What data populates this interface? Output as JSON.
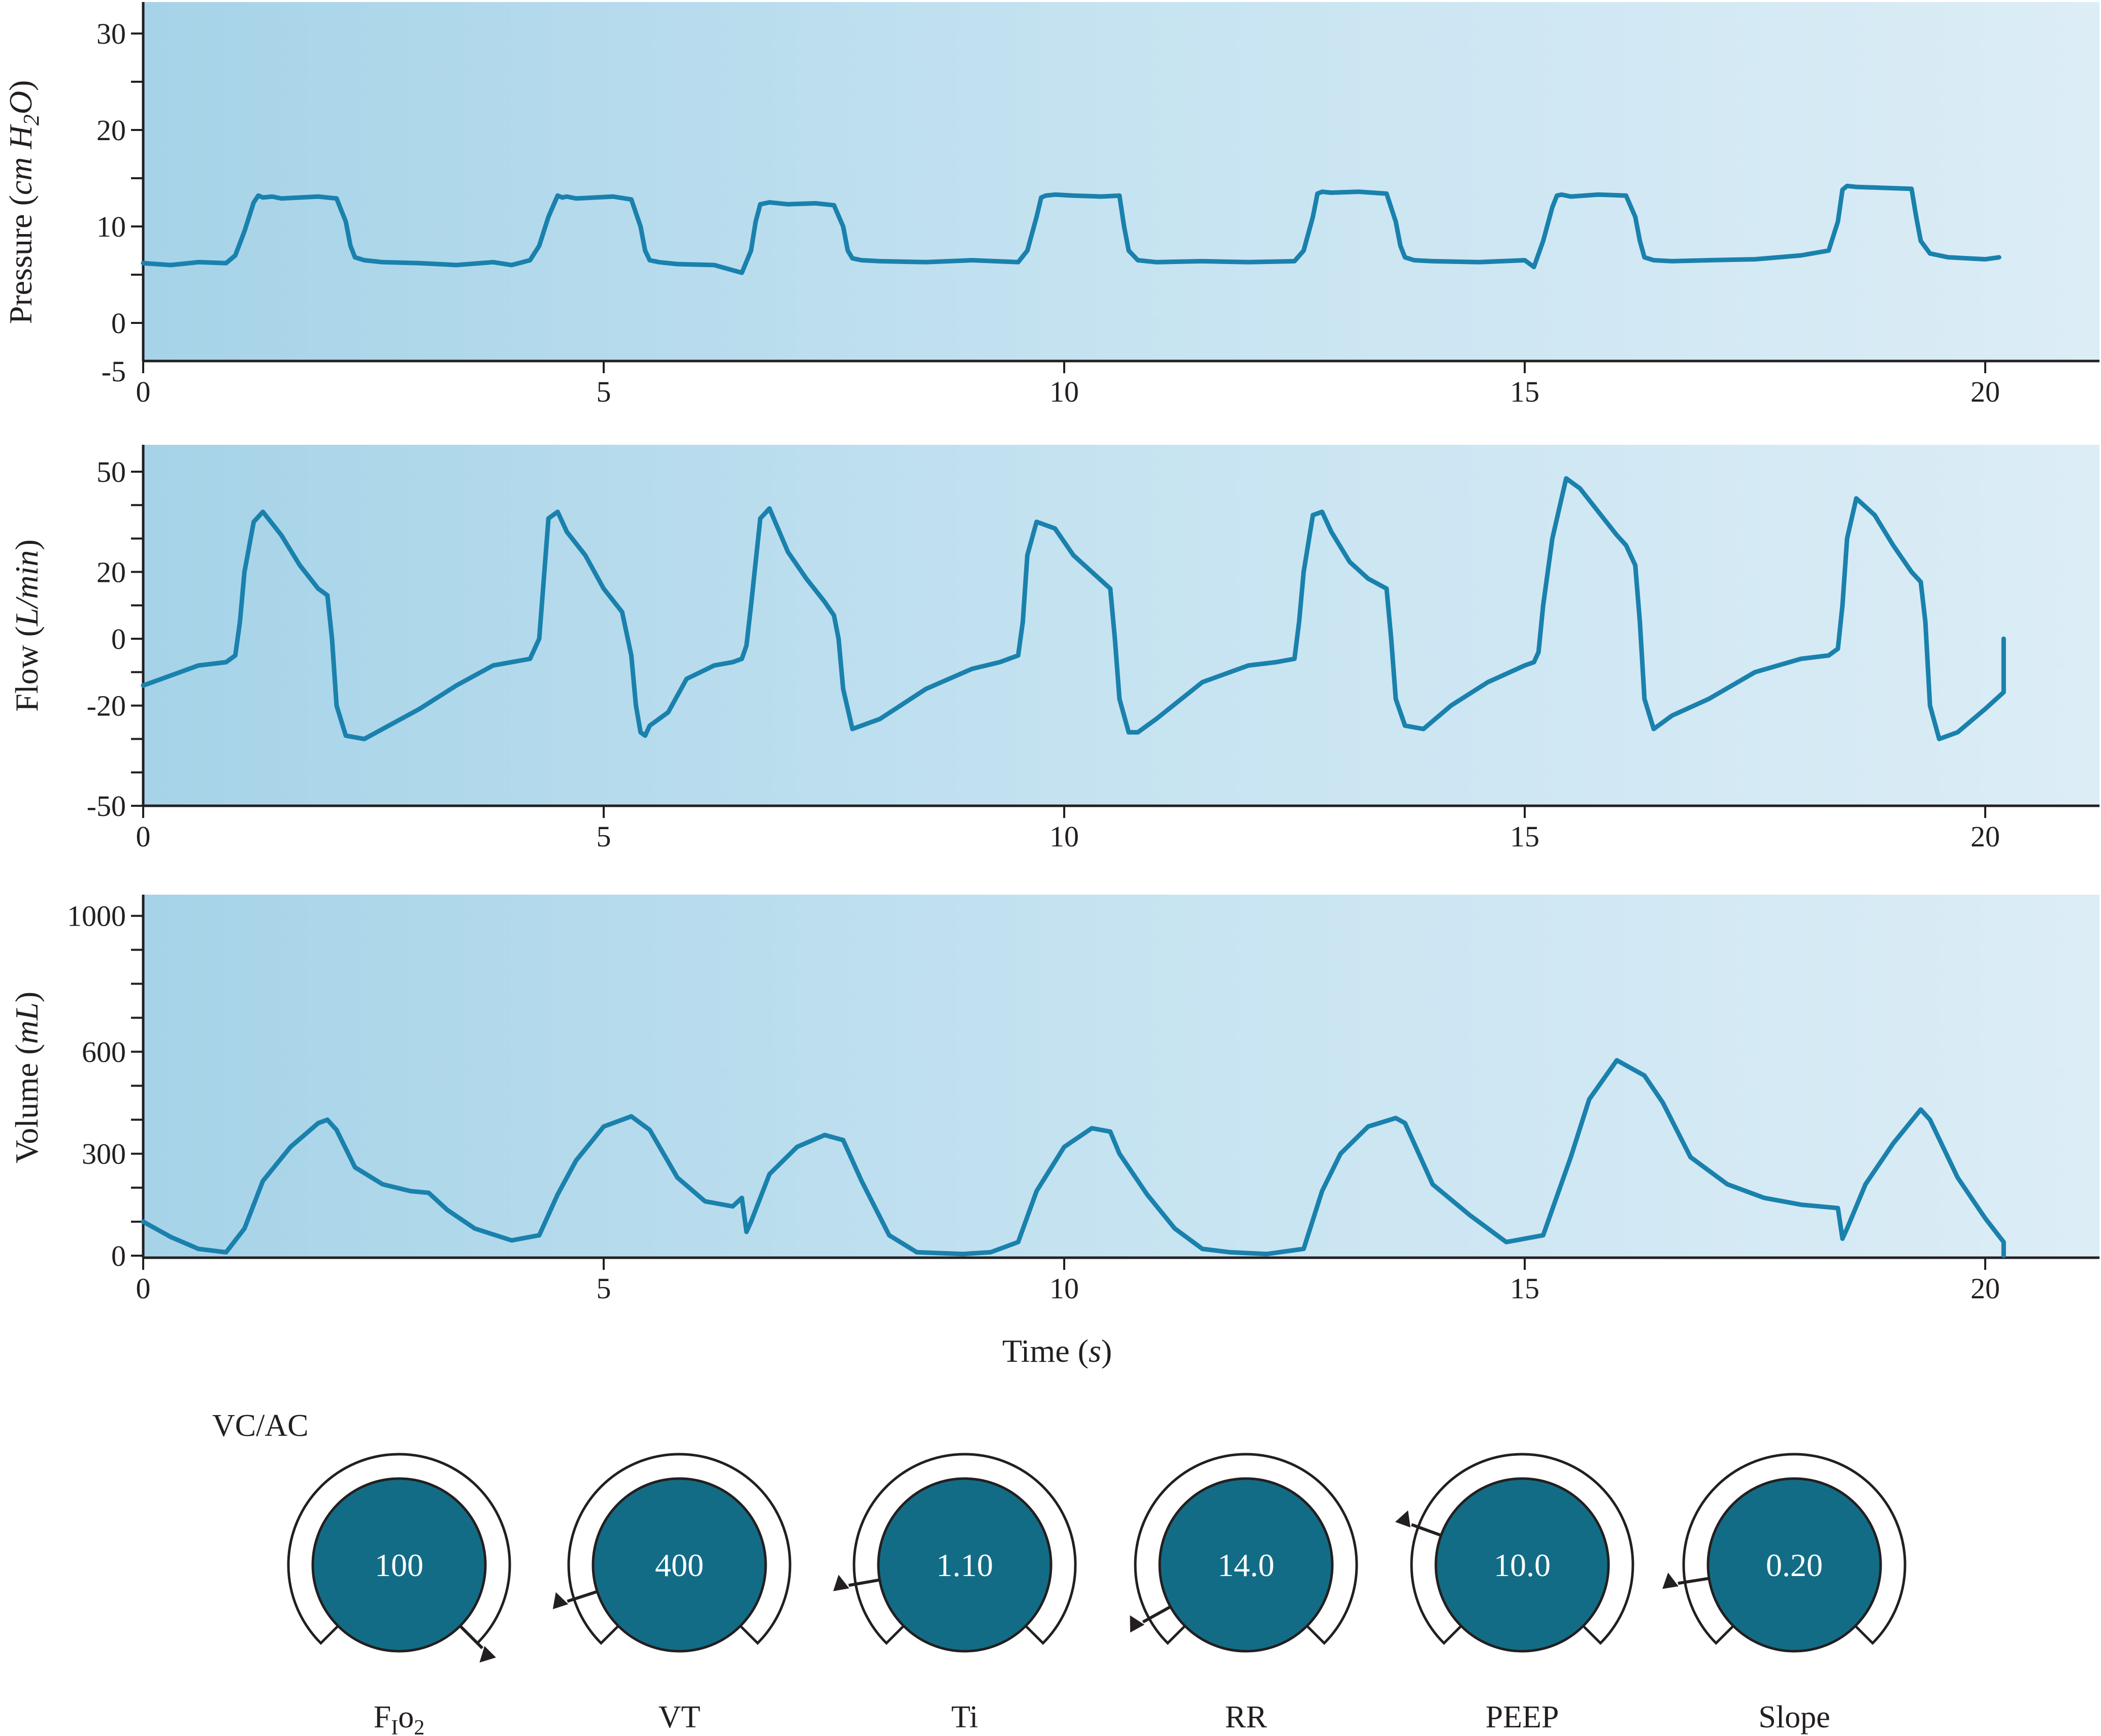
{
  "colors": {
    "trace": "#1a81ad",
    "panel_left": "#a6d3e8",
    "panel_mid": "#c6e3f1",
    "panel_right": "#dcedf6",
    "axis": "#231f20",
    "knob_fill": "#136c86",
    "knob_stroke": "#231f20",
    "knob_ring": "#ffffff"
  },
  "chart_data": [
    {
      "type": "line",
      "title": "",
      "xlabel": "",
      "ylabel_main": "Pressure (",
      "ylabel_italic": "cm H",
      "ylabel_sub": "2",
      "ylabel_italic2": "O",
      "ylabel_end": ")",
      "xlim": [
        0,
        21.3
      ],
      "ylim": [
        -5,
        33
      ],
      "xticks": [
        "0",
        "5",
        "10",
        "15",
        "20"
      ],
      "yticks": [
        "-5",
        "0",
        "10",
        "20",
        "30"
      ],
      "grid": false,
      "series": [
        {
          "x": [
            0,
            0.3,
            0.6,
            0.9,
            1.0,
            1.1,
            1.2,
            1.25,
            1.3,
            1.4,
            1.5,
            1.7,
            1.9,
            2.1,
            2.2,
            2.25,
            2.3,
            2.4,
            2.6,
            3.0,
            3.4,
            3.8,
            4.0,
            4.2,
            4.3,
            4.4,
            4.5,
            4.55,
            4.6,
            4.7,
            4.9,
            5.1,
            5.3,
            5.4,
            5.45,
            5.5,
            5.6,
            5.8,
            6.2,
            6.5,
            6.6,
            6.65,
            6.7,
            6.8,
            7.0,
            7.3,
            7.5,
            7.6,
            7.65,
            7.7,
            7.8,
            8.0,
            8.5,
            9.0,
            9.5,
            9.6,
            9.7,
            9.75,
            9.8,
            9.9,
            10.1,
            10.4,
            10.6,
            10.65,
            10.7,
            10.8,
            11.0,
            11.5,
            12.0,
            12.5,
            12.6,
            12.7,
            12.75,
            12.8,
            12.9,
            13.2,
            13.5,
            13.6,
            13.65,
            13.7,
            13.8,
            14.0,
            14.5,
            15.0,
            15.1,
            15.2,
            15.3,
            15.35,
            15.4,
            15.5,
            15.8,
            16.1,
            16.2,
            16.25,
            16.3,
            16.4,
            16.6,
            17.0,
            17.5,
            18.0,
            18.3,
            18.4,
            18.45,
            18.5,
            18.6,
            18.9,
            19.2,
            19.25,
            19.3,
            19.4,
            19.6,
            20.0,
            20.15
          ],
          "y": [
            6.2,
            6.0,
            6.3,
            6.2,
            7.0,
            9.5,
            12.5,
            13.2,
            13.0,
            13.1,
            12.9,
            13.0,
            13.1,
            12.9,
            10.5,
            8.0,
            6.8,
            6.5,
            6.3,
            6.2,
            6.0,
            6.3,
            6.0,
            6.5,
            8.0,
            11.0,
            13.2,
            13.0,
            13.1,
            12.9,
            13.0,
            13.1,
            12.8,
            10.0,
            7.5,
            6.5,
            6.3,
            6.1,
            6.0,
            5.2,
            7.5,
            10.5,
            12.3,
            12.5,
            12.3,
            12.4,
            12.2,
            10.0,
            7.5,
            6.7,
            6.5,
            6.4,
            6.3,
            6.5,
            6.3,
            7.5,
            11.0,
            13.0,
            13.2,
            13.3,
            13.2,
            13.1,
            13.2,
            10.0,
            7.5,
            6.5,
            6.3,
            6.4,
            6.3,
            6.4,
            7.5,
            11.0,
            13.4,
            13.6,
            13.5,
            13.6,
            13.4,
            10.5,
            8.0,
            6.8,
            6.5,
            6.4,
            6.3,
            6.5,
            5.8,
            8.5,
            12.0,
            13.2,
            13.3,
            13.1,
            13.3,
            13.2,
            11.0,
            8.5,
            6.8,
            6.5,
            6.4,
            6.5,
            6.6,
            7.0,
            7.5,
            10.5,
            13.8,
            14.2,
            14.1,
            14.0,
            13.9,
            11.0,
            8.5,
            7.2,
            6.8,
            6.6,
            6.8
          ]
        }
      ]
    },
    {
      "type": "line",
      "title": "",
      "xlabel": "",
      "ylabel_main": "Flow (",
      "ylabel_italic": "L/min",
      "ylabel_end": ")",
      "xlim": [
        0,
        21.3
      ],
      "ylim": [
        -50,
        53
      ],
      "xticks": [
        "0",
        "5",
        "10",
        "15",
        "20"
      ],
      "yticks": [
        "-50",
        "-20",
        "0",
        "20",
        "50"
      ],
      "grid": false,
      "series": [
        {
          "x": [
            0,
            0.3,
            0.6,
            0.9,
            1.0,
            1.05,
            1.1,
            1.2,
            1.3,
            1.5,
            1.7,
            1.9,
            2.0,
            2.05,
            2.1,
            2.2,
            2.4,
            2.6,
            3.0,
            3.4,
            3.8,
            4.0,
            4.2,
            4.3,
            4.35,
            4.4,
            4.5,
            4.6,
            4.8,
            5.0,
            5.2,
            5.3,
            5.35,
            5.4,
            5.45,
            5.5,
            5.7,
            5.9,
            6.2,
            6.4,
            6.5,
            6.55,
            6.6,
            6.7,
            6.8,
            7.0,
            7.2,
            7.4,
            7.5,
            7.55,
            7.6,
            7.7,
            8.0,
            8.5,
            9.0,
            9.3,
            9.5,
            9.55,
            9.6,
            9.7,
            9.9,
            10.1,
            10.3,
            10.5,
            10.55,
            10.6,
            10.7,
            10.8,
            11.0,
            11.5,
            12.0,
            12.3,
            12.5,
            12.55,
            12.6,
            12.7,
            12.8,
            12.9,
            13.1,
            13.3,
            13.5,
            13.55,
            13.6,
            13.7,
            13.9,
            14.2,
            14.6,
            15.0,
            15.1,
            15.15,
            15.2,
            15.3,
            15.45,
            15.6,
            15.8,
            16.0,
            16.1,
            16.2,
            16.25,
            16.3,
            16.4,
            16.6,
            17.0,
            17.5,
            18.0,
            18.3,
            18.4,
            18.45,
            18.5,
            18.6,
            18.8,
            19.0,
            19.2,
            19.3,
            19.35,
            19.4,
            19.5,
            19.7,
            20.0,
            20.2,
            20.2
          ],
          "y": [
            -14,
            -11,
            -8,
            -7,
            -5,
            5,
            20,
            35,
            38,
            31,
            22,
            15,
            13,
            0,
            -20,
            -29,
            -30,
            -27,
            -21,
            -14,
            -8,
            -7,
            -6,
            0,
            18,
            36,
            38,
            32,
            25,
            15,
            8,
            -5,
            -20,
            -28,
            -29,
            -26,
            -22,
            -12,
            -8,
            -7,
            -6,
            -2,
            10,
            36,
            39,
            26,
            18,
            11,
            7,
            0,
            -15,
            -27,
            -24,
            -15,
            -9,
            -7,
            -5,
            5,
            25,
            35,
            33,
            25,
            20,
            15,
            0,
            -18,
            -28,
            -28,
            -24,
            -13,
            -8,
            -7,
            -6,
            5,
            20,
            37,
            38,
            32,
            23,
            18,
            15,
            0,
            -18,
            -26,
            -27,
            -20,
            -13,
            -8,
            -7,
            -4,
            10,
            30,
            48,
            45,
            38,
            31,
            28,
            22,
            5,
            -18,
            -27,
            -23,
            -18,
            -10,
            -6,
            -5,
            -3,
            10,
            30,
            42,
            37,
            28,
            20,
            17,
            5,
            -20,
            -30,
            -28,
            -21,
            -16,
            0
          ]
        }
      ]
    },
    {
      "type": "line",
      "title": "",
      "xlabel_main": "Time (",
      "xlabel_italic": "s",
      "xlabel_end": ")",
      "ylabel_main": "Volume (",
      "ylabel_italic": "mL",
      "ylabel_end": ")",
      "xlim": [
        0,
        21.3
      ],
      "ylim": [
        0,
        1050
      ],
      "xticks": [
        "0",
        "5",
        "10",
        "15",
        "20"
      ],
      "yticks": [
        "0",
        "300",
        "600",
        "1000"
      ],
      "grid": false,
      "series": [
        {
          "x": [
            0,
            0.3,
            0.6,
            0.9,
            1.1,
            1.3,
            1.6,
            1.9,
            2.0,
            2.1,
            2.3,
            2.6,
            2.9,
            3.1,
            3.3,
            3.6,
            4.0,
            4.3,
            4.5,
            4.7,
            5.0,
            5.3,
            5.5,
            5.8,
            6.1,
            6.4,
            6.5,
            6.55,
            6.6,
            6.8,
            7.1,
            7.4,
            7.6,
            7.8,
            8.1,
            8.4,
            8.6,
            8.9,
            9.2,
            9.5,
            9.7,
            10.0,
            10.3,
            10.5,
            10.6,
            10.9,
            11.2,
            11.5,
            11.8,
            12.2,
            12.6,
            12.8,
            13.0,
            13.3,
            13.6,
            13.7,
            14.0,
            14.4,
            14.8,
            15.2,
            15.5,
            15.7,
            16.0,
            16.3,
            16.5,
            16.8,
            17.2,
            17.6,
            18.0,
            18.4,
            18.45,
            18.5,
            18.7,
            19.0,
            19.3,
            19.4,
            19.7,
            20.0,
            20.2,
            20.2
          ],
          "y": [
            100,
            55,
            20,
            10,
            80,
            220,
            320,
            390,
            400,
            370,
            260,
            210,
            190,
            185,
            135,
            80,
            45,
            60,
            180,
            280,
            380,
            410,
            370,
            230,
            160,
            145,
            170,
            70,
            100,
            240,
            320,
            355,
            340,
            220,
            60,
            10,
            8,
            5,
            10,
            40,
            190,
            320,
            375,
            365,
            300,
            180,
            80,
            20,
            10,
            5,
            20,
            190,
            300,
            380,
            405,
            390,
            210,
            120,
            40,
            60,
            290,
            460,
            575,
            530,
            450,
            290,
            210,
            170,
            150,
            140,
            50,
            80,
            210,
            330,
            430,
            400,
            230,
            110,
            40,
            0
          ]
        }
      ]
    }
  ],
  "controls": {
    "mode": "VC/AC",
    "knobs": [
      {
        "value": "100",
        "label": "F",
        "label_sub": "I",
        "label_mid": "o",
        "label_sub2": "2",
        "pointer_deg": 135
      },
      {
        "value": "400",
        "label": "VT",
        "pointer_deg": 252
      },
      {
        "value": "1.10",
        "label": "Ti",
        "pointer_deg": 260
      },
      {
        "value": "14.0",
        "label": "RR",
        "pointer_deg": 241
      },
      {
        "value": "10.0",
        "label": "PEEP",
        "pointer_deg": 290
      },
      {
        "value": "0.20",
        "label": "Slope",
        "pointer_deg": 261
      }
    ]
  }
}
